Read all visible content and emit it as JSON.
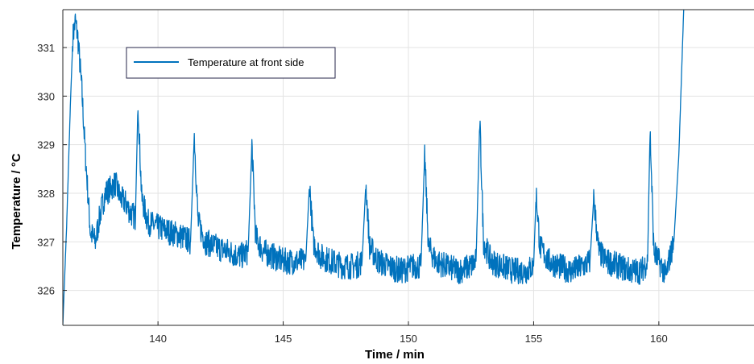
{
  "chart_data": {
    "type": "line",
    "title": "",
    "xlabel": "Time / min",
    "ylabel": "Temperature / °C",
    "xlim": [
      136.2,
      163.8
    ],
    "ylim": [
      325.28,
      331.78
    ],
    "xticks": [
      140,
      145,
      150,
      155,
      160
    ],
    "yticks": [
      326,
      327,
      328,
      329,
      330,
      331
    ],
    "grid": true,
    "legend": {
      "position": "top-left"
    },
    "colors": {
      "series": "#0072BD",
      "grid": "#e3e3e3",
      "axis": "#262626"
    },
    "series": [
      {
        "name": "Temperature at front side",
        "x": [
          136.2,
          136.35,
          136.5,
          136.6,
          136.7,
          136.8,
          136.95,
          137.1,
          137.3,
          137.5,
          137.7,
          137.9,
          138.1,
          138.3,
          138.5,
          138.7,
          138.9,
          139.1,
          139.2,
          139.35,
          139.6,
          140.0,
          140.5,
          141.0,
          141.3,
          141.45,
          141.6,
          141.9,
          142.3,
          142.8,
          143.3,
          143.6,
          143.75,
          143.9,
          144.2,
          144.6,
          145.0,
          145.5,
          145.9,
          146.05,
          146.2,
          146.5,
          146.9,
          147.4,
          147.9,
          148.15,
          148.3,
          148.45,
          148.8,
          149.2,
          149.7,
          150.2,
          150.5,
          150.65,
          150.8,
          151.1,
          151.5,
          152.0,
          152.5,
          152.7,
          152.85,
          153.0,
          153.3,
          153.7,
          154.2,
          154.7,
          155.0,
          155.1,
          155.25,
          155.6,
          156.0,
          156.5,
          157.0,
          157.25,
          157.4,
          157.6,
          157.9,
          158.4,
          158.9,
          159.3,
          159.55,
          159.65,
          159.8,
          160.1,
          160.3,
          160.4,
          160.6,
          160.8,
          161.0
        ],
        "y": [
          325.3,
          327.3,
          329.8,
          331.2,
          331.55,
          331.2,
          330.2,
          328.8,
          327.2,
          327.0,
          327.6,
          328.0,
          328.1,
          328.2,
          327.9,
          327.8,
          327.6,
          327.5,
          329.9,
          327.9,
          327.4,
          327.3,
          327.2,
          327.1,
          327.0,
          329.2,
          327.4,
          327.0,
          326.9,
          326.8,
          326.7,
          326.8,
          329.0,
          327.1,
          326.8,
          326.7,
          326.6,
          326.6,
          326.6,
          328.2,
          327.0,
          326.7,
          326.6,
          326.5,
          326.5,
          326.6,
          328.2,
          326.9,
          326.6,
          326.5,
          326.4,
          326.5,
          326.5,
          328.8,
          326.9,
          326.6,
          326.5,
          326.4,
          326.5,
          326.6,
          329.5,
          327.0,
          326.6,
          326.5,
          326.4,
          326.4,
          326.5,
          328.0,
          326.9,
          326.6,
          326.5,
          326.4,
          326.5,
          326.6,
          327.9,
          326.8,
          326.6,
          326.5,
          326.4,
          326.4,
          326.6,
          329.3,
          326.8,
          326.5,
          326.3,
          326.6,
          327.0,
          328.8,
          331.9
        ]
      }
    ]
  }
}
